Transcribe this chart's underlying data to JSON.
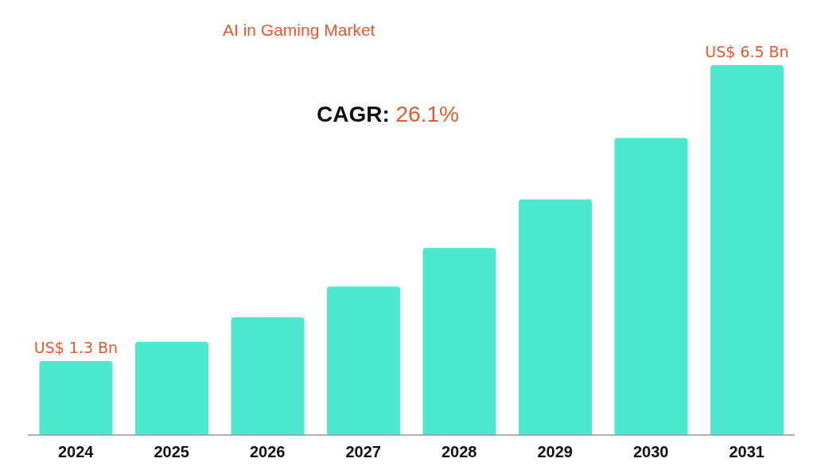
{
  "chart_data": {
    "type": "bar",
    "title": "AI in Gaming Market",
    "annotations": [
      "CAGR: 26.1%"
    ],
    "categories": [
      "2024",
      "2025",
      "2026",
      "2027",
      "2028",
      "2029",
      "2030",
      "2031"
    ],
    "values": [
      1.3,
      1.64,
      2.07,
      2.61,
      3.29,
      4.14,
      5.22,
      6.5
    ],
    "value_labels": [
      "US$ 1.3 Bn",
      null,
      null,
      null,
      null,
      null,
      null,
      "US$ 6.5 Bn"
    ],
    "color": "#4de8d0",
    "grid": false,
    "legend": false
  }
}
